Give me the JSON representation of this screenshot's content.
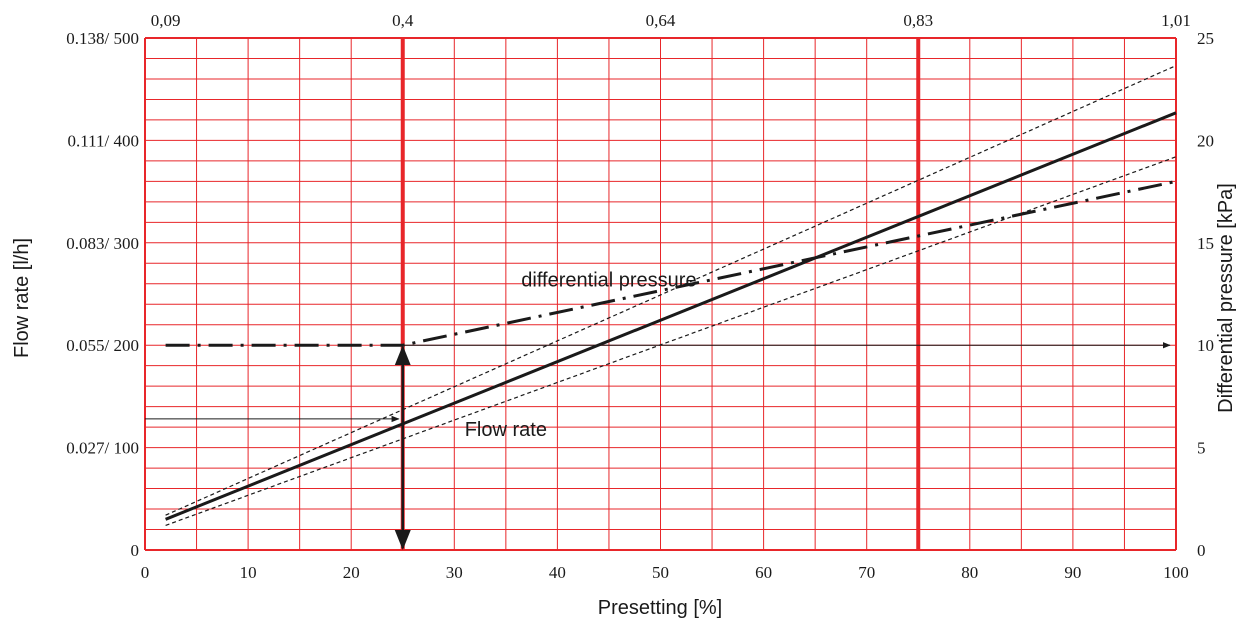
{
  "chart_data": {
    "type": "line",
    "xlabel": "Presetting [%]",
    "ylabel_left": "Flow rate [l/h]",
    "ylabel_right": "Differential pressure [kPa]",
    "xlim": [
      0,
      100
    ],
    "x_ticks": [
      "0",
      "10",
      "20",
      "30",
      "40",
      "50",
      "60",
      "70",
      "80",
      "90",
      "100"
    ],
    "left_ylim": [
      0,
      500
    ],
    "left_ticks": [
      {
        "value": 0,
        "label": "0"
      },
      {
        "value": 100,
        "label": "0.027/ 100"
      },
      {
        "value": 200,
        "label": "0.055/ 200"
      },
      {
        "value": 300,
        "label": "0.083/ 300"
      },
      {
        "value": 400,
        "label": "0.111/ 400"
      },
      {
        "value": 500,
        "label": "0.138/ 500"
      }
    ],
    "right_ylim": [
      0,
      25
    ],
    "right_ticks": [
      "0",
      "5",
      "10",
      "15",
      "20",
      "25"
    ],
    "top_ticks": [
      {
        "x": 2,
        "label": "0,09"
      },
      {
        "x": 25,
        "label": "0,4"
      },
      {
        "x": 50,
        "label": "0,64"
      },
      {
        "x": 75,
        "label": "0,83"
      },
      {
        "x": 100,
        "label": "1,01"
      }
    ],
    "grid": true,
    "grid_color": "#e8262a",
    "line_color": "#1a1a1a",
    "series": [
      {
        "name": "Flow rate",
        "style": "solid",
        "axis": "left",
        "x": [
          2,
          100
        ],
        "y": [
          30,
          427
        ]
      },
      {
        "name": "",
        "style": "dashed",
        "axis": "left",
        "x": [
          2,
          100
        ],
        "y": [
          34,
          473
        ]
      },
      {
        "name": "",
        "style": "dashed",
        "axis": "left",
        "x": [
          2,
          100
        ],
        "y": [
          24,
          384
        ]
      },
      {
        "name": "differential pressure",
        "style": "dashdot",
        "axis": "right",
        "x": [
          2,
          25,
          100
        ],
        "y": [
          10,
          10,
          18
        ]
      }
    ],
    "annotations": [
      {
        "text": "differential pressure",
        "x": 45,
        "y_right": 13.2
      },
      {
        "text": "Flow rate",
        "x": 35,
        "y_right": 5.9
      }
    ],
    "marker_lines_x": [
      25,
      75
    ],
    "guide_pressure_kpa": 10,
    "guide_flow_lh": 128
  }
}
